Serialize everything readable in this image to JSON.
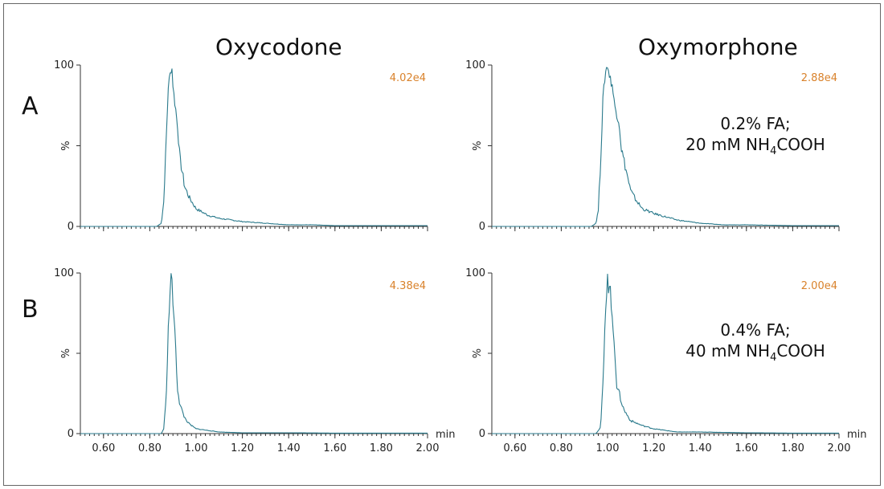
{
  "titles": {
    "left": "Oxycodone",
    "right": "Oxymorphone"
  },
  "rows": [
    {
      "label": "A",
      "condition": {
        "line1": "0.2% FA;",
        "line2_prefix": "20 mM NH",
        "line2_sub": "4",
        "line2_suffix": "COOH"
      }
    },
    {
      "label": "B",
      "condition": {
        "line1": "0.4% FA;",
        "line2_prefix": "40 mM NH",
        "line2_sub": "4",
        "line2_suffix": "COOH"
      }
    }
  ],
  "colors": {
    "trace": "#2a7a8c",
    "intensity": "#d9822b",
    "axis": "#333333"
  },
  "chart_data": [
    {
      "type": "line",
      "id": "A-oxycodone",
      "xlim": [
        0.5,
        2.0
      ],
      "ylim": [
        0,
        100
      ],
      "ylabel": "%",
      "yticks": [
        "0",
        "100"
      ],
      "xticks": [
        "0.60",
        "0.80",
        "1.00",
        "1.20",
        "1.40",
        "1.60",
        "1.80",
        "2.00"
      ],
      "show_xtick_labels": false,
      "xunit": "",
      "intensity_label": "4.02e4",
      "series": [
        {
          "x": [
            0.8,
            0.83,
            0.85,
            0.86,
            0.87,
            0.88,
            0.89,
            0.895,
            0.9,
            0.905,
            0.91,
            0.92,
            0.93,
            0.94,
            0.95,
            0.97,
            1.0,
            1.05,
            1.1,
            1.2,
            1.3,
            1.4,
            1.5,
            1.6,
            1.8,
            2.0
          ],
          "y": [
            0,
            0,
            2,
            15,
            50,
            87,
            96,
            100,
            88,
            80,
            75,
            62,
            42,
            34,
            25,
            18,
            11,
            7,
            5,
            3,
            2,
            1,
            1,
            0.5,
            0.5,
            0.5
          ]
        }
      ]
    },
    {
      "type": "line",
      "id": "A-oxymorphone",
      "xlim": [
        0.5,
        2.0
      ],
      "ylim": [
        0,
        100
      ],
      "ylabel": "%",
      "yticks": [
        "0",
        "100"
      ],
      "xticks": [
        "0.60",
        "0.80",
        "1.00",
        "1.20",
        "1.40",
        "1.60",
        "1.80",
        "2.00"
      ],
      "show_xtick_labels": false,
      "xunit": "",
      "intensity_label": "2.88e4",
      "condition_row": 0,
      "series": [
        {
          "x": [
            0.9,
            0.93,
            0.95,
            0.96,
            0.97,
            0.98,
            0.99,
            1.0,
            1.01,
            1.02,
            1.03,
            1.05,
            1.06,
            1.08,
            1.1,
            1.12,
            1.15,
            1.2,
            1.3,
            1.4,
            1.5,
            1.6,
            1.8,
            2.0
          ],
          "y": [
            0,
            0,
            2,
            10,
            40,
            78,
            95,
            100,
            92,
            88,
            75,
            65,
            48,
            35,
            22,
            17,
            11,
            8,
            4,
            2,
            1,
            1,
            0.5,
            0.5
          ]
        }
      ]
    },
    {
      "type": "line",
      "id": "B-oxycodone",
      "xlim": [
        0.5,
        2.0
      ],
      "ylim": [
        0,
        100
      ],
      "ylabel": "%",
      "yticks": [
        "0",
        "100"
      ],
      "xticks": [
        "0.60",
        "0.80",
        "1.00",
        "1.20",
        "1.40",
        "1.60",
        "1.80",
        "2.00"
      ],
      "show_xtick_labels": true,
      "xunit": "min",
      "intensity_label": "4.38e4",
      "series": [
        {
          "x": [
            0.8,
            0.85,
            0.86,
            0.87,
            0.88,
            0.89,
            0.895,
            0.9,
            0.91,
            0.92,
            0.93,
            0.95,
            0.97,
            1.0,
            1.05,
            1.1,
            1.2,
            1.4,
            1.6,
            1.8,
            2.0
          ],
          "y": [
            0,
            0,
            3,
            20,
            65,
            95,
            100,
            82,
            58,
            28,
            18,
            10,
            6,
            3,
            2,
            1,
            0.5,
            0.5,
            0.3,
            0.3,
            0.3
          ]
        }
      ]
    },
    {
      "type": "line",
      "id": "B-oxymorphone",
      "xlim": [
        0.5,
        2.0
      ],
      "ylim": [
        0,
        100
      ],
      "ylabel": "%",
      "yticks": [
        "0",
        "100"
      ],
      "xticks": [
        "0.60",
        "0.80",
        "1.00",
        "1.20",
        "1.40",
        "1.60",
        "1.80",
        "2.00"
      ],
      "show_xtick_labels": true,
      "xunit": "min",
      "intensity_label": "2.00e4",
      "condition_row": 1,
      "series": [
        {
          "x": [
            0.9,
            0.95,
            0.97,
            0.98,
            0.99,
            1.0,
            1.005,
            1.01,
            1.02,
            1.03,
            1.04,
            1.05,
            1.07,
            1.1,
            1.15,
            1.2,
            1.3,
            1.4,
            1.6,
            1.8,
            2.0
          ],
          "y": [
            0,
            0,
            4,
            30,
            70,
            100,
            88,
            95,
            70,
            55,
            30,
            25,
            15,
            8,
            5,
            3,
            1,
            1,
            0.5,
            0.3,
            0.3
          ]
        }
      ]
    }
  ]
}
